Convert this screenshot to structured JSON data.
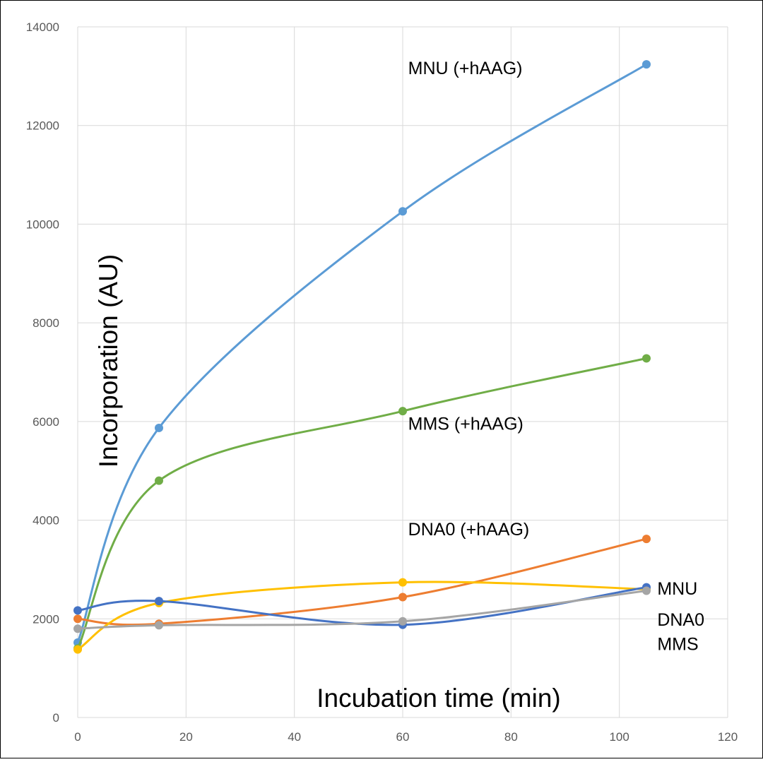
{
  "chart_data": {
    "type": "line",
    "title": "",
    "xlabel": "Incubation time (min)",
    "ylabel": "Incorporation (AU)",
    "xlim": [
      0,
      120
    ],
    "ylim": [
      0,
      14000
    ],
    "x_ticks": [
      "0",
      "20",
      "40",
      "60",
      "80",
      "100",
      "120"
    ],
    "y_ticks": [
      "0",
      "2000",
      "4000",
      "6000",
      "8000",
      "10000",
      "12000",
      "14000"
    ],
    "grid": true,
    "legend": "none",
    "x": [
      0,
      15,
      60,
      105
    ],
    "series": [
      {
        "values": [
          1520,
          5870,
          10260,
          13240
        ],
        "color": "#5b9bd5"
      },
      {
        "values": [
          1400,
          4800,
          6210,
          7280
        ],
        "color": "#70ad47"
      },
      {
        "values": [
          2000,
          1900,
          2440,
          3620
        ],
        "color": "#ed7d31"
      },
      {
        "values": [
          1380,
          2320,
          2740,
          2600
        ],
        "color": "#ffc000"
      },
      {
        "values": [
          2170,
          2360,
          1880,
          2640
        ],
        "color": "#4472c4"
      },
      {
        "values": [
          1800,
          1870,
          1950,
          2570
        ],
        "color": "#a5a5a5"
      }
    ],
    "annotations": [
      {
        "text": "MNU (+hAAG)",
        "x": 61,
        "y": 13040
      },
      {
        "text": "MMS (+hAAG)",
        "x": 61,
        "y": 5830
      },
      {
        "text": "DNA0 (+hAAG)",
        "x": 61,
        "y": 3690
      },
      {
        "text": "MNU",
        "x": 107,
        "y": 2490
      },
      {
        "text": "DNA0",
        "x": 107,
        "y": 1860
      },
      {
        "text": "MMS",
        "x": 107,
        "y": 1370
      }
    ]
  }
}
